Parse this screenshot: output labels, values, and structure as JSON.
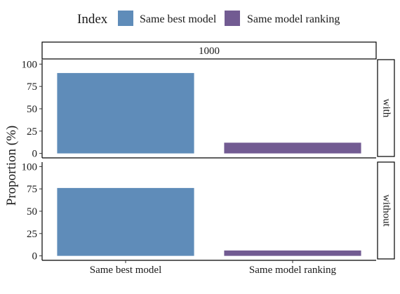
{
  "chart_data": {
    "type": "bar",
    "legend": {
      "title": "Index",
      "position": "top",
      "items": [
        {
          "label": "Same best model",
          "color": "#5f8cb9"
        },
        {
          "label": "Same model ranking",
          "color": "#725b92"
        }
      ]
    },
    "column_strip": "1000",
    "categories": [
      "Same best model",
      "Same model ranking"
    ],
    "ylabel": "Proportion (%)",
    "ylim": [
      0,
      100
    ],
    "yticks": [
      0,
      25,
      50,
      75,
      100
    ],
    "grid": false,
    "panels": [
      {
        "strip": "with",
        "values": [
          90,
          12
        ]
      },
      {
        "strip": "without",
        "values": [
          76,
          6
        ]
      }
    ]
  }
}
